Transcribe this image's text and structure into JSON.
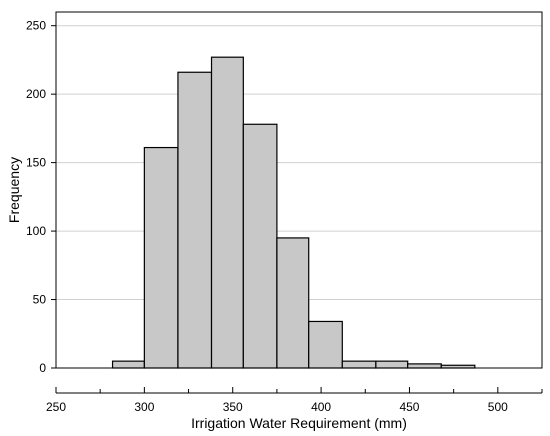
{
  "chart_data": {
    "type": "bar",
    "title": "",
    "xlabel": "Irrigation Water Requirement (mm)",
    "ylabel": "Frequency",
    "bins": [
      {
        "x0": 282,
        "x1": 300,
        "count": 5
      },
      {
        "x0": 300,
        "x1": 319,
        "count": 161
      },
      {
        "x0": 319,
        "x1": 338,
        "count": 216
      },
      {
        "x0": 338,
        "x1": 356,
        "count": 227
      },
      {
        "x0": 356,
        "x1": 375,
        "count": 178
      },
      {
        "x0": 375,
        "x1": 393,
        "count": 95
      },
      {
        "x0": 393,
        "x1": 412,
        "count": 34
      },
      {
        "x0": 412,
        "x1": 431,
        "count": 5
      },
      {
        "x0": 431,
        "x1": 449,
        "count": 5
      },
      {
        "x0": 449,
        "x1": 468,
        "count": 3
      },
      {
        "x0": 468,
        "x1": 487,
        "count": 2
      }
    ],
    "xlim": [
      250,
      525
    ],
    "ylim": [
      0,
      260
    ],
    "xticks": [
      250,
      300,
      350,
      400,
      450,
      500
    ],
    "yticks": [
      0,
      50,
      100,
      150,
      200,
      250
    ],
    "grid": "horizontal",
    "bar_color": "#c8c8c8",
    "bar_edge_color": "#000000"
  }
}
